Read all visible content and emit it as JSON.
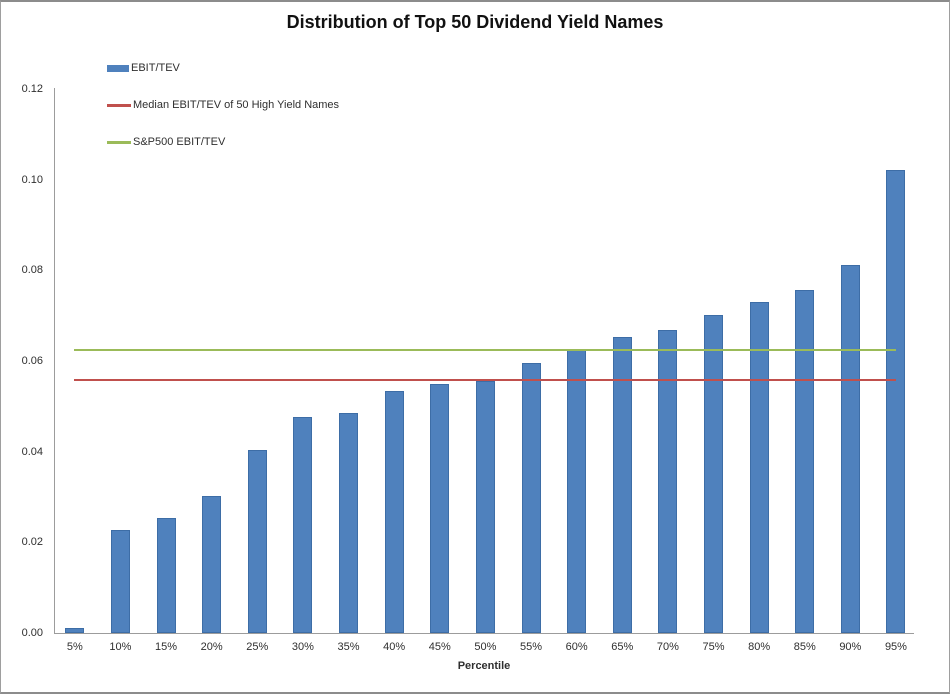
{
  "chart_data": {
    "type": "bar",
    "title": "Distribution of Top 50 Dividend Yield Names",
    "xlabel": "Percentile",
    "ylabel": "",
    "categories": [
      "5%",
      "10%",
      "15%",
      "20%",
      "25%",
      "30%",
      "35%",
      "40%",
      "45%",
      "50%",
      "55%",
      "60%",
      "65%",
      "70%",
      "75%",
      "80%",
      "85%",
      "90%",
      "95%"
    ],
    "series": [
      {
        "name": "EBIT/TEV",
        "kind": "bar",
        "color": "#4f81bd",
        "values": [
          0.0012,
          0.0228,
          0.0253,
          0.0302,
          0.0403,
          0.0477,
          0.0485,
          0.0533,
          0.0549,
          0.0555,
          0.0596,
          0.0624,
          0.0653,
          0.0669,
          0.0702,
          0.073,
          0.0756,
          0.0811,
          0.1021
        ]
      },
      {
        "name": "Median EBIT/TEV of 50 High Yield Names",
        "kind": "line",
        "color": "#c0504d",
        "value": 0.0557
      },
      {
        "name": "S&P500 EBIT/TEV",
        "kind": "line",
        "color": "#9bbb59",
        "value": 0.0624
      }
    ],
    "y_axis": {
      "min": 0,
      "max": 0.12,
      "step": 0.02,
      "tick_labels": [
        "0.00",
        "0.02",
        "0.04",
        "0.06",
        "0.08",
        "0.10",
        "0.12"
      ]
    },
    "legend_position": "top-left",
    "grid": false,
    "axis_color": "#9c9c9c",
    "text_color": "#2f2f2f"
  }
}
